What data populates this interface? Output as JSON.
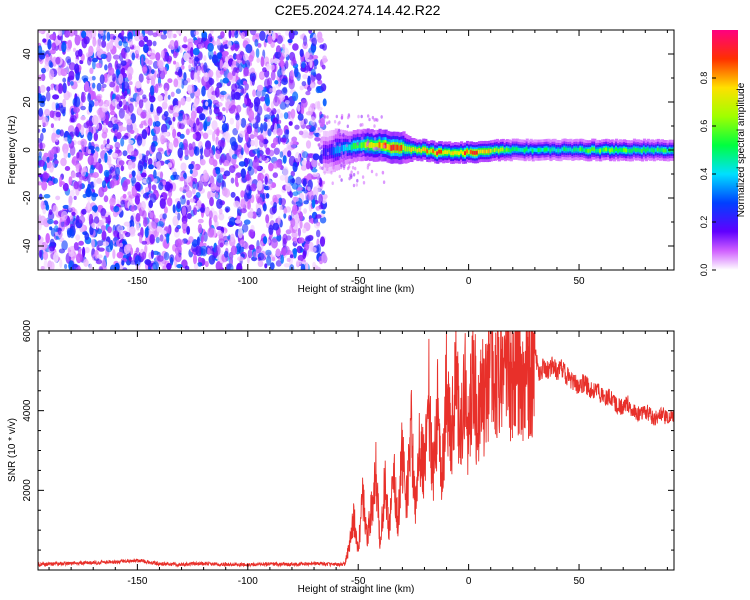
{
  "title": "C2E5.2024.274.14.42.R22",
  "chart_data": [
    {
      "type": "heatmap",
      "title": "C2E5.2024.274.14.42.R22",
      "xlabel": "Height of straight line (km)",
      "ylabel": "Frequency (Hz)",
      "xlim": [
        -195,
        93
      ],
      "ylim": [
        -50,
        50
      ],
      "x_ticks": [
        -150,
        -100,
        -50,
        0,
        50
      ],
      "x_tick_labels": [
        "-150",
        "-100",
        "-50",
        "0",
        "50"
      ],
      "y_ticks": [
        -40,
        -20,
        0,
        20,
        40
      ],
      "y_tick_labels": [
        "-40",
        "-20",
        "0",
        "20",
        "40"
      ],
      "noise_region": {
        "x_range": [
          -195,
          -65
        ],
        "frequency_range": [
          -50,
          50
        ],
        "amplitude_range": [
          0.0,
          0.3
        ]
      },
      "signal_trace": {
        "x": [
          -66,
          -60,
          -55,
          -50,
          -45,
          -40,
          -35,
          -30,
          -25,
          -20,
          -15,
          -10,
          -5,
          0,
          5,
          10,
          20,
          30,
          40,
          50,
          60,
          70,
          80,
          93
        ],
        "center_frequency": [
          -1,
          0,
          1,
          2,
          2,
          2,
          1,
          1,
          0,
          0,
          -1,
          -1,
          -1,
          -1,
          -1,
          0,
          0,
          0,
          0,
          0,
          0,
          0,
          0,
          0
        ],
        "half_width": [
          4,
          4,
          3,
          3,
          3,
          3,
          3,
          3,
          2,
          2,
          2,
          2,
          2,
          2,
          2,
          2,
          2,
          2,
          2,
          2,
          2,
          2,
          2,
          2
        ],
        "peak_amplitude": [
          0.2,
          0.35,
          0.5,
          0.6,
          0.8,
          0.9,
          0.95,
          0.85,
          0.7,
          0.8,
          0.9,
          0.75,
          0.9,
          0.85,
          0.9,
          0.75,
          0.5,
          0.5,
          0.5,
          0.55,
          0.6,
          0.6,
          0.55,
          0.55
        ]
      },
      "colorbar": {
        "label": "Normalized spectral amplitude",
        "range": [
          0.0,
          1.0
        ],
        "ticks": [
          0.0,
          0.2,
          0.4,
          0.6,
          0.8
        ],
        "tick_labels": [
          "0.0",
          "0.2",
          "0.4",
          "0.6",
          "0.8"
        ]
      },
      "color": "#6a00f0"
    },
    {
      "type": "line",
      "xlabel": "Height of straight line (km)",
      "ylabel": "SNR (10 * v/v)",
      "xlim": [
        -195,
        93
      ],
      "ylim": [
        0,
        6000
      ],
      "x_ticks": [
        -150,
        -100,
        -50,
        0,
        50
      ],
      "x_tick_labels": [
        "-150",
        "-100",
        "-50",
        "0",
        "50"
      ],
      "y_ticks": [
        2000,
        4000,
        6000
      ],
      "y_tick_labels": [
        "2000",
        "4000",
        "6000"
      ],
      "series": [
        {
          "color": "#e8302a",
          "x": [
            -195,
            -190,
            -180,
            -170,
            -160,
            -150,
            -140,
            -130,
            -120,
            -110,
            -100,
            -90,
            -80,
            -70,
            -60,
            -56,
            -54,
            -52,
            -50,
            -48,
            -46,
            -44,
            -42,
            -40,
            -38,
            -36,
            -34,
            -32,
            -30,
            -28,
            -26,
            -24,
            -22,
            -20,
            -18,
            -16,
            -14,
            -12,
            -10,
            -8,
            -6,
            -4,
            -2,
            0,
            2,
            4,
            6,
            8,
            10,
            12,
            14,
            16,
            18,
            20,
            22,
            24,
            26,
            28,
            30,
            32,
            34,
            36,
            38,
            40,
            42,
            44,
            46,
            48,
            50,
            52,
            54,
            56,
            58,
            60,
            62,
            64,
            66,
            68,
            70,
            72,
            74,
            76,
            78,
            80,
            82,
            84,
            86,
            88,
            90,
            93
          ],
          "values": [
            130,
            150,
            170,
            180,
            200,
            250,
            150,
            140,
            160,
            140,
            130,
            150,
            140,
            160,
            140,
            150,
            600,
            1300,
            500,
            1800,
            800,
            1500,
            2400,
            600,
            2200,
            1000,
            2600,
            1200,
            3000,
            1800,
            3500,
            1500,
            3200,
            2600,
            4300,
            2400,
            4100,
            2400,
            4600,
            3000,
            5000,
            3300,
            4900,
            3100,
            5200,
            3600,
            4400,
            4300,
            5700,
            4400,
            5200,
            4600,
            5300,
            4500,
            5200,
            4700,
            5400,
            4800,
            5400,
            4900,
            5100,
            5000,
            5200,
            5000,
            5100,
            4900,
            4800,
            4700,
            4600,
            4700,
            4600,
            4500,
            4500,
            4400,
            4300,
            4400,
            4200,
            4100,
            4100,
            4200,
            4000,
            3950,
            3900,
            4000,
            3900,
            3800,
            3850,
            3900,
            3800,
            3850
          ]
        }
      ]
    }
  ]
}
